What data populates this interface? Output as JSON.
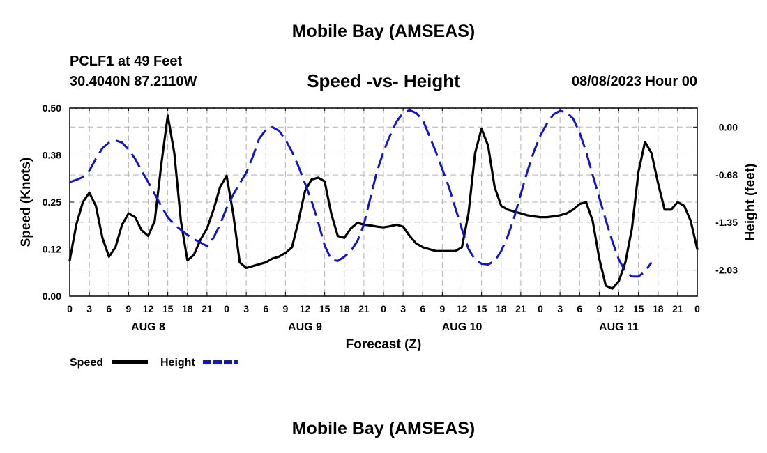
{
  "page": {
    "title": "Mobile Bay (AMSEAS)",
    "station": "PCLF1 at 49 Feet",
    "coordinates": "30.4040N  87.2110W",
    "forecast_time": "08/08/2023 Hour 00",
    "bottom_title": "Mobile Bay (AMSEAS)"
  },
  "chart_data": {
    "type": "line",
    "title": "Speed -vs- Height",
    "xlabel": "Forecast (Z)",
    "ylabel_left": "Speed (Knots)",
    "ylabel_right": "Height (feet)",
    "x_hours_range": [
      0,
      96
    ],
    "x_tick_labels": [
      "0",
      "3",
      "6",
      "9",
      "12",
      "15",
      "18",
      "21",
      "0",
      "3",
      "6",
      "9",
      "12",
      "15",
      "18",
      "21",
      "0",
      "3",
      "6",
      "9",
      "12",
      "15",
      "18",
      "21",
      "0",
      "3",
      "6",
      "9",
      "12",
      "15",
      "18",
      "21",
      "0"
    ],
    "day_labels": [
      {
        "label": "AUG 8",
        "hour": 12
      },
      {
        "label": "AUG 9",
        "hour": 36
      },
      {
        "label": "AUG 10",
        "hour": 60
      },
      {
        "label": "AUG 11",
        "hour": 84
      }
    ],
    "y_left": {
      "min": 0,
      "max": 0.5,
      "ticks": [
        0.0,
        0.125,
        0.25,
        0.375,
        0.5
      ],
      "tick_labels": [
        "0.00",
        "0.12",
        "0.25",
        "0.38",
        "0.50"
      ]
    },
    "y_right": {
      "min": -2.4,
      "max": 0.27,
      "ticks": [
        0.0,
        -0.68,
        -1.35,
        -2.03
      ],
      "tick_labels": [
        "0.00",
        "-0.68",
        "-1.35",
        "-2.03"
      ]
    },
    "grid": true,
    "legend": [
      {
        "label": "Speed",
        "color": "#000000",
        "style": "solid"
      },
      {
        "label": "Height",
        "color": "#1414c8",
        "style": "dashed"
      }
    ],
    "series": [
      {
        "name": "Speed",
        "axis": "left",
        "color": "#000000",
        "points": [
          [
            0,
            0.095
          ],
          [
            1,
            0.19
          ],
          [
            2,
            0.25
          ],
          [
            3,
            0.275
          ],
          [
            4,
            0.24
          ],
          [
            5,
            0.155
          ],
          [
            6,
            0.105
          ],
          [
            7,
            0.13
          ],
          [
            8,
            0.19
          ],
          [
            9,
            0.22
          ],
          [
            10,
            0.21
          ],
          [
            11,
            0.175
          ],
          [
            12,
            0.16
          ],
          [
            13,
            0.2
          ],
          [
            14,
            0.35
          ],
          [
            15,
            0.48
          ],
          [
            16,
            0.38
          ],
          [
            17,
            0.2
          ],
          [
            18,
            0.095
          ],
          [
            19,
            0.11
          ],
          [
            20,
            0.15
          ],
          [
            21,
            0.18
          ],
          [
            22,
            0.23
          ],
          [
            23,
            0.29
          ],
          [
            24,
            0.32
          ],
          [
            25,
            0.22
          ],
          [
            26,
            0.09
          ],
          [
            27,
            0.075
          ],
          [
            28,
            0.08
          ],
          [
            29,
            0.085
          ],
          [
            30,
            0.09
          ],
          [
            31,
            0.1
          ],
          [
            32,
            0.105
          ],
          [
            33,
            0.115
          ],
          [
            34,
            0.13
          ],
          [
            35,
            0.2
          ],
          [
            36,
            0.28
          ],
          [
            37,
            0.31
          ],
          [
            38,
            0.315
          ],
          [
            39,
            0.305
          ],
          [
            40,
            0.22
          ],
          [
            41,
            0.16
          ],
          [
            42,
            0.155
          ],
          [
            43,
            0.18
          ],
          [
            44,
            0.195
          ],
          [
            45,
            0.19
          ],
          [
            46,
            0.188
          ],
          [
            47,
            0.185
          ],
          [
            48,
            0.183
          ],
          [
            49,
            0.186
          ],
          [
            50,
            0.19
          ],
          [
            51,
            0.185
          ],
          [
            52,
            0.16
          ],
          [
            53,
            0.14
          ],
          [
            54,
            0.13
          ],
          [
            55,
            0.125
          ],
          [
            56,
            0.12
          ],
          [
            57,
            0.12
          ],
          [
            58,
            0.12
          ],
          [
            59,
            0.12
          ],
          [
            60,
            0.13
          ],
          [
            61,
            0.22
          ],
          [
            62,
            0.38
          ],
          [
            63,
            0.445
          ],
          [
            64,
            0.4
          ],
          [
            65,
            0.29
          ],
          [
            66,
            0.24
          ],
          [
            67,
            0.23
          ],
          [
            68,
            0.225
          ],
          [
            69,
            0.22
          ],
          [
            70,
            0.215
          ],
          [
            71,
            0.212
          ],
          [
            72,
            0.21
          ],
          [
            73,
            0.21
          ],
          [
            74,
            0.212
          ],
          [
            75,
            0.215
          ],
          [
            76,
            0.22
          ],
          [
            77,
            0.23
          ],
          [
            78,
            0.245
          ],
          [
            79,
            0.25
          ],
          [
            80,
            0.2
          ],
          [
            81,
            0.1
          ],
          [
            82,
            0.028
          ],
          [
            83,
            0.02
          ],
          [
            84,
            0.04
          ],
          [
            85,
            0.09
          ],
          [
            86,
            0.18
          ],
          [
            87,
            0.33
          ],
          [
            88,
            0.41
          ],
          [
            89,
            0.38
          ],
          [
            90,
            0.3
          ],
          [
            91,
            0.23
          ],
          [
            92,
            0.23
          ],
          [
            93,
            0.25
          ],
          [
            94,
            0.24
          ],
          [
            95,
            0.2
          ],
          [
            96,
            0.125
          ]
        ]
      },
      {
        "name": "Height",
        "axis": "right",
        "color": "#1414c8",
        "points": [
          [
            0,
            -0.78
          ],
          [
            1,
            -0.75
          ],
          [
            2,
            -0.71
          ],
          [
            3,
            -0.62
          ],
          [
            4,
            -0.45
          ],
          [
            5,
            -0.3
          ],
          [
            6,
            -0.22
          ],
          [
            7,
            -0.19
          ],
          [
            8,
            -0.22
          ],
          [
            9,
            -0.32
          ],
          [
            10,
            -0.45
          ],
          [
            11,
            -0.62
          ],
          [
            12,
            -0.78
          ],
          [
            13,
            -0.95
          ],
          [
            14,
            -1.12
          ],
          [
            15,
            -1.28
          ],
          [
            16,
            -1.38
          ],
          [
            17,
            -1.46
          ],
          [
            18,
            -1.53
          ],
          [
            19,
            -1.59
          ],
          [
            20,
            -1.64
          ],
          [
            21,
            -1.69
          ],
          [
            22,
            -1.57
          ],
          [
            23,
            -1.38
          ],
          [
            24,
            -1.15
          ],
          [
            25,
            -0.96
          ],
          [
            26,
            -0.8
          ],
          [
            27,
            -0.65
          ],
          [
            28,
            -0.42
          ],
          [
            29,
            -0.16
          ],
          [
            30,
            -0.04
          ],
          [
            31,
            0.0
          ],
          [
            32,
            -0.05
          ],
          [
            33,
            -0.18
          ],
          [
            34,
            -0.35
          ],
          [
            35,
            -0.56
          ],
          [
            36,
            -0.8
          ],
          [
            37,
            -1.05
          ],
          [
            38,
            -1.35
          ],
          [
            39,
            -1.68
          ],
          [
            40,
            -1.88
          ],
          [
            41,
            -1.9
          ],
          [
            42,
            -1.84
          ],
          [
            43,
            -1.76
          ],
          [
            44,
            -1.62
          ],
          [
            45,
            -1.38
          ],
          [
            46,
            -1.0
          ],
          [
            47,
            -0.63
          ],
          [
            48,
            -0.35
          ],
          [
            49,
            -0.12
          ],
          [
            50,
            0.08
          ],
          [
            51,
            0.2
          ],
          [
            52,
            0.24
          ],
          [
            53,
            0.2
          ],
          [
            54,
            0.1
          ],
          [
            55,
            -0.12
          ],
          [
            56,
            -0.35
          ],
          [
            57,
            -0.6
          ],
          [
            58,
            -0.85
          ],
          [
            59,
            -1.15
          ],
          [
            60,
            -1.45
          ],
          [
            61,
            -1.73
          ],
          [
            62,
            -1.88
          ],
          [
            63,
            -1.94
          ],
          [
            64,
            -1.95
          ],
          [
            65,
            -1.9
          ],
          [
            66,
            -1.76
          ],
          [
            67,
            -1.55
          ],
          [
            68,
            -1.28
          ],
          [
            69,
            -0.95
          ],
          [
            70,
            -0.63
          ],
          [
            71,
            -0.35
          ],
          [
            72,
            -0.12
          ],
          [
            73,
            0.05
          ],
          [
            74,
            0.18
          ],
          [
            75,
            0.23
          ],
          [
            76,
            0.21
          ],
          [
            77,
            0.12
          ],
          [
            78,
            -0.08
          ],
          [
            79,
            -0.35
          ],
          [
            80,
            -0.68
          ],
          [
            81,
            -1.0
          ],
          [
            82,
            -1.32
          ],
          [
            83,
            -1.62
          ],
          [
            84,
            -1.88
          ],
          [
            85,
            -2.05
          ],
          [
            86,
            -2.12
          ],
          [
            87,
            -2.12
          ],
          [
            88,
            -2.05
          ],
          [
            89,
            -1.92
          ]
        ]
      }
    ]
  }
}
